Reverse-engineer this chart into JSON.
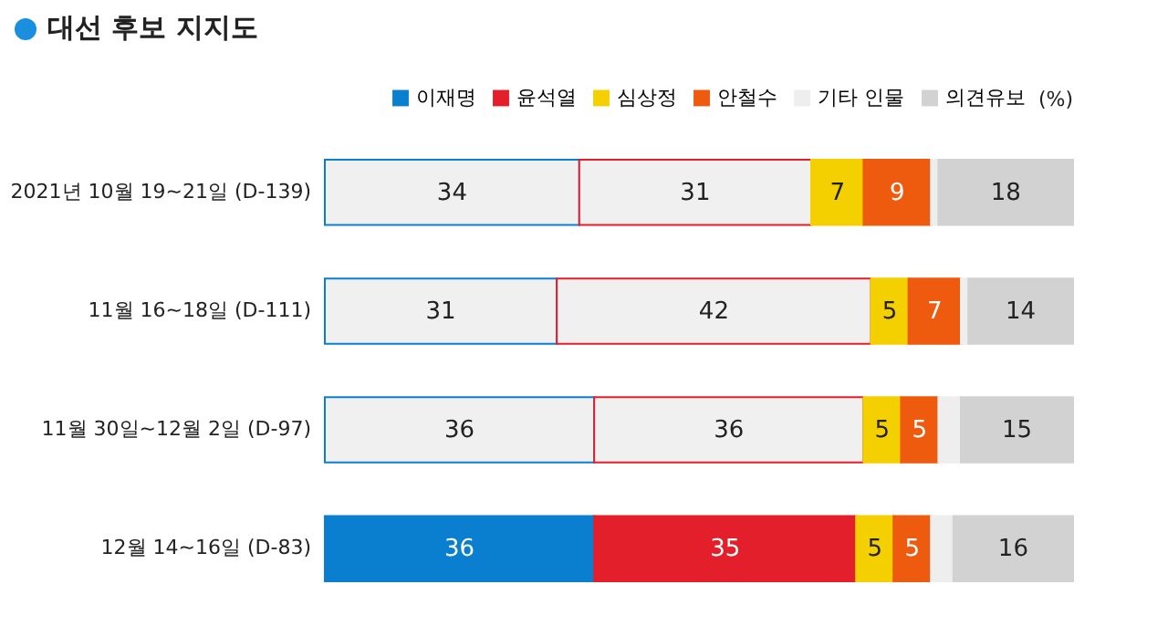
{
  "chart_data": {
    "type": "bar",
    "orientation": "horizontal",
    "stacked": true,
    "title": "대선 후보 지지도",
    "legend": "top right",
    "annotations": [
      "(%)"
    ],
    "categories": [
      "2021년 10월 19~21일 (D-139)",
      "11월 16~18일 (D-111)",
      "11월 30일~12월 2일 (D-97)",
      "12월 14~16일 (D-83)"
    ],
    "series": [
      {
        "name": "이재명",
        "color": "#0a7fcf",
        "colors": [
          "#f0f0f0",
          "#f0f0f0",
          "#f0f0f0",
          "#0a7fcf"
        ],
        "values": [
          34,
          31,
          36,
          36
        ],
        "value_labels": [
          "34",
          "31",
          "36",
          "36"
        ]
      },
      {
        "name": "윤석열",
        "color": "#e21f2a",
        "colors": [
          "#f0f0f0",
          "#f0f0f0",
          "#f0f0f0",
          "#e21f2a"
        ],
        "values": [
          31,
          42,
          36,
          35
        ],
        "value_labels": [
          "31",
          "42",
          "36",
          "35"
        ]
      },
      {
        "name": "심상정",
        "color": "#f5d000",
        "values": [
          7,
          5,
          5,
          5
        ],
        "value_labels": [
          "7",
          "5",
          "5",
          "5"
        ]
      },
      {
        "name": "안철수",
        "color": "#ee5a0e",
        "values": [
          9,
          7,
          5,
          5
        ],
        "value_labels": [
          "9",
          "7",
          "5",
          "5"
        ]
      },
      {
        "name": "기타 인물",
        "color": "#eeeeee",
        "values": [
          1,
          1,
          3,
          3
        ],
        "value_labels": [
          null,
          null,
          null,
          null
        ]
      },
      {
        "name": "의견유보",
        "color": "#d2d2d2",
        "values": [
          18,
          14,
          15,
          16
        ],
        "value_labels": [
          "18",
          "14",
          "15",
          "16"
        ]
      }
    ]
  }
}
